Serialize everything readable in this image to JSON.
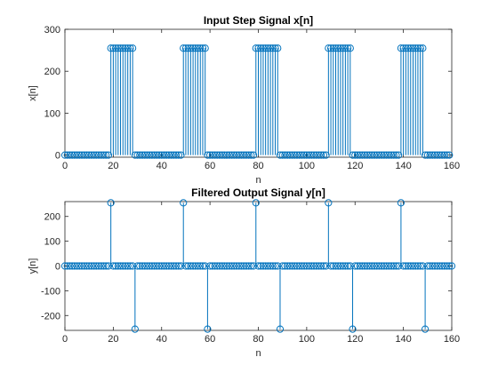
{
  "chart_data": [
    {
      "type": "stem",
      "title": "Input Step Signal x[n]",
      "xlabel": "n",
      "ylabel": "x[n]",
      "xlim": [
        0,
        160
      ],
      "ylim": [
        -5,
        300
      ],
      "xticks": [
        0,
        20,
        40,
        60,
        80,
        100,
        120,
        140,
        160
      ],
      "yticks": [
        0,
        100,
        200,
        300
      ],
      "color": "#0072BD",
      "grid": false,
      "series": [
        {
          "description": "n = 0..159; x[n] = 255 for n in 19-28, 49-58, 79-88, 109-118, 139-148, else 0",
          "x_start": 0,
          "x_end": 159,
          "high_value": 255,
          "low_value": 0,
          "high_ranges": [
            [
              19,
              28
            ],
            [
              49,
              58
            ],
            [
              79,
              88
            ],
            [
              109,
              118
            ],
            [
              139,
              148
            ]
          ]
        }
      ]
    },
    {
      "type": "stem",
      "title": "Filtered Output Signal y[n]",
      "xlabel": "n",
      "ylabel": "y[n]",
      "xlim": [
        0,
        160
      ],
      "ylim": [
        -260,
        260
      ],
      "xticks": [
        0,
        20,
        40,
        60,
        80,
        100,
        120,
        140,
        160
      ],
      "yticks": [
        -200,
        -100,
        0,
        100,
        200
      ],
      "color": "#0072BD",
      "grid": false,
      "series": [
        {
          "x_start": 0,
          "x_end": 160,
          "low_value": 0,
          "impulses": [
            {
              "x": 19,
              "y": 255
            },
            {
              "x": 29,
              "y": -255
            },
            {
              "x": 49,
              "y": 255
            },
            {
              "x": 59,
              "y": -255
            },
            {
              "x": 79,
              "y": 255
            },
            {
              "x": 89,
              "y": -255
            },
            {
              "x": 109,
              "y": 255
            },
            {
              "x": 119,
              "y": -255
            },
            {
              "x": 139,
              "y": 255
            },
            {
              "x": 149,
              "y": -255
            }
          ]
        }
      ]
    }
  ]
}
